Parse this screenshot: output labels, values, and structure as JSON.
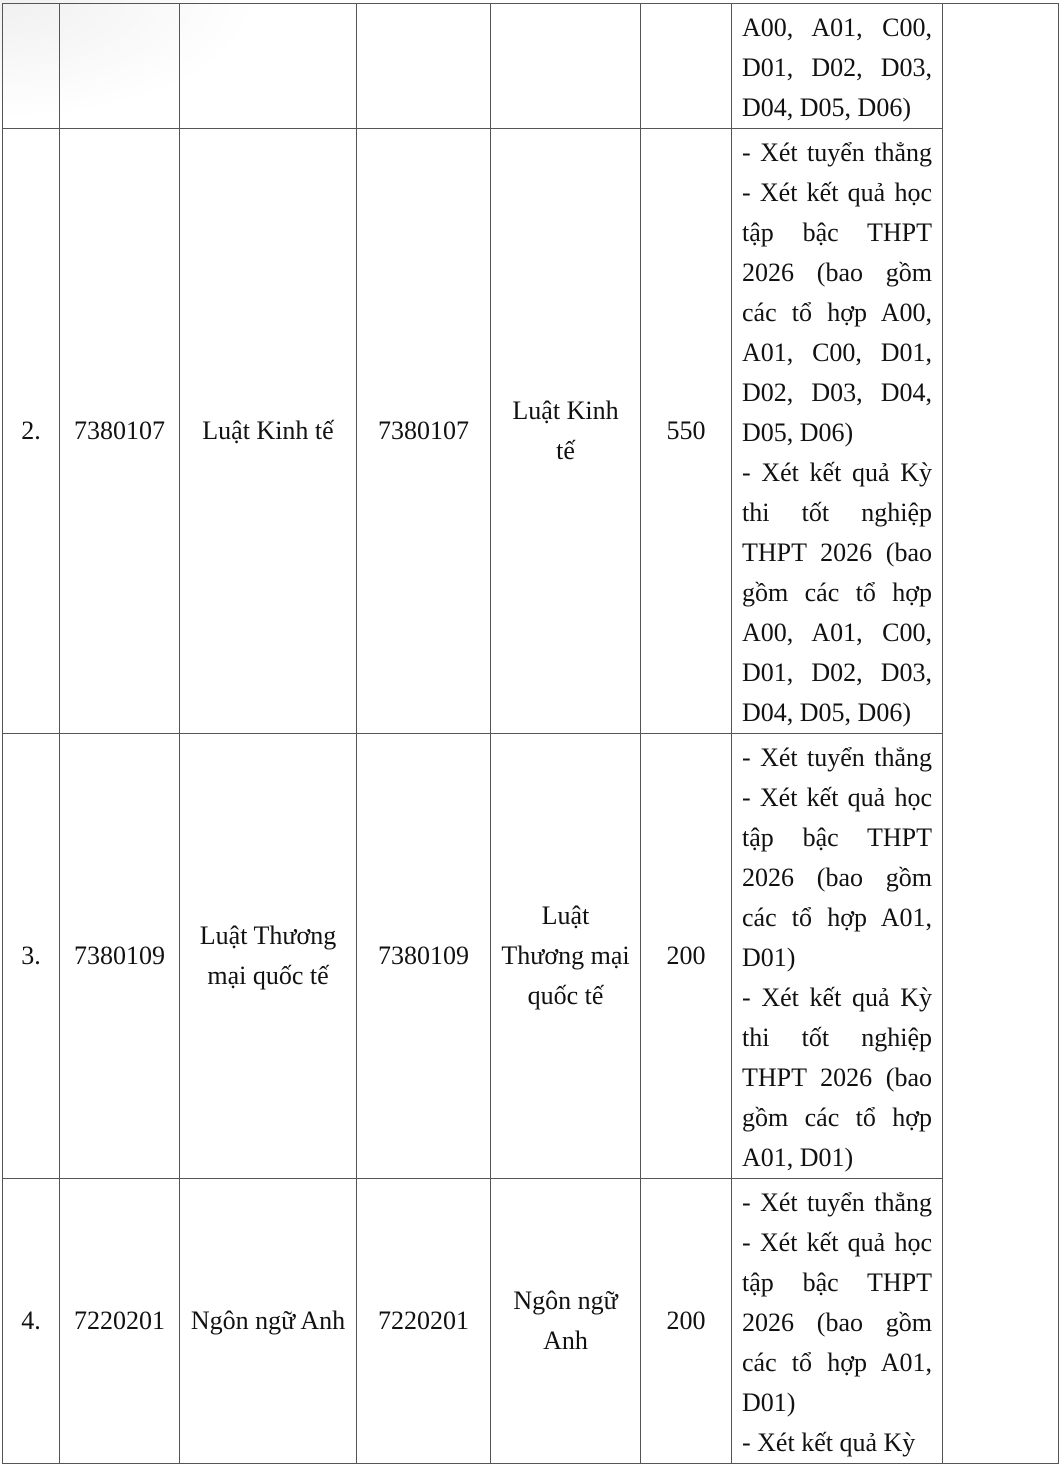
{
  "rows": [
    {
      "stt": "",
      "code": "",
      "name": "",
      "code2": "",
      "name2": "",
      "quota": "",
      "methods": [
        "A00,  A01,  C00,",
        "D01,  D02,  D03,",
        "D04, D05, D06)"
      ]
    },
    {
      "stt": "2.",
      "code": "7380107",
      "name": "Luật Kinh tế",
      "code2": "7380107",
      "name2": "Luật Kinh tế",
      "quota": "550",
      "methods": [
        "- Xét tuyển thẳng",
        "- Xét kết quả học",
        "tập bậc THPT",
        "2026 (bao gồm",
        "các tổ hợp A00,",
        "A01, C00, D01,",
        "D02, D03, D04,",
        "D05, D06)",
        "- Xét kết quả Kỳ",
        "thi tốt nghiệp",
        "THPT 2026 (bao",
        "gồm các tổ hợp",
        "A00, A01, C00,",
        "D01, D02, D03,",
        "D04, D05, D06)"
      ]
    },
    {
      "stt": "3.",
      "code": "7380109",
      "name": "Luật Thương mại quốc tế",
      "code2": "7380109",
      "name2": "Luật Thương mại quốc tế",
      "quota": "200",
      "methods": [
        "- Xét tuyển thẳng",
        "- Xét kết quả học",
        "tập bậc THPT",
        "2026 (bao gồm",
        "các tổ hợp A01,",
        "D01)",
        "- Xét kết quả Kỳ",
        "thi tốt nghiệp",
        "THPT 2026 (bao",
        "gồm các tổ hợp",
        "A01, D01)"
      ]
    },
    {
      "stt": "4.",
      "code": "7220201",
      "name": "Ngôn ngữ Anh",
      "code2": "7220201",
      "name2": "Ngôn ngữ Anh",
      "quota": "200",
      "methods": [
        "- Xét tuyển thẳng",
        "- Xét kết quả học",
        "tập bậc THPT",
        "2026 (bao gồm",
        "các tổ hợp A01,",
        "D01)",
        "- Xét kết quả Kỳ"
      ]
    }
  ]
}
